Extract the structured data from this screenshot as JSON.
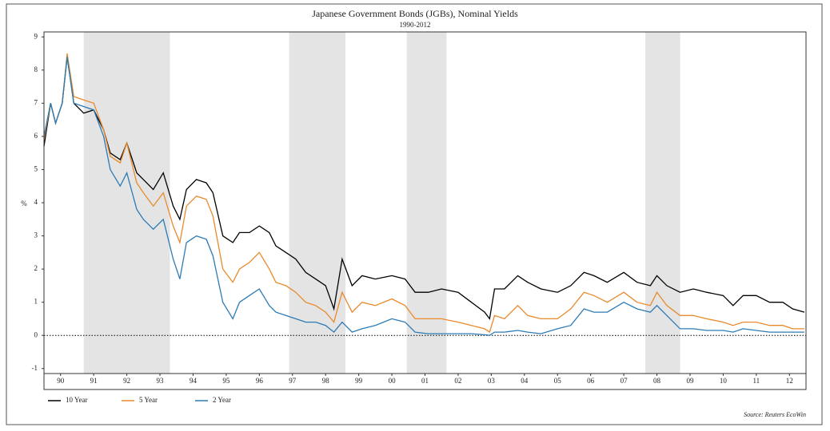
{
  "chart_data": {
    "type": "line",
    "title": "Japanese Government Bonds (JGBs), Nominal Yields",
    "subtitle": "1990-2012",
    "y_label": "%",
    "source": "Source: Reuters EcoWin",
    "x": [
      1990.0,
      1990.2,
      1990.35,
      1990.55,
      1990.7,
      1990.9,
      1991.2,
      1991.5,
      1991.8,
      1992.0,
      1992.3,
      1992.5,
      1992.8,
      1993.0,
      1993.3,
      1993.6,
      1993.9,
      1994.1,
      1994.3,
      1994.6,
      1994.9,
      1995.1,
      1995.4,
      1995.7,
      1995.9,
      1996.2,
      1996.5,
      1996.8,
      1997.0,
      1997.3,
      1997.6,
      1997.9,
      1998.2,
      1998.5,
      1998.75,
      1999.0,
      1999.3,
      1999.6,
      2000.0,
      2000.5,
      2000.9,
      2001.2,
      2001.6,
      2002.0,
      2002.5,
      2002.9,
      2003.3,
      2003.45,
      2003.6,
      2003.9,
      2004.3,
      2004.6,
      2005.0,
      2005.5,
      2005.9,
      2006.3,
      2006.6,
      2007.0,
      2007.5,
      2007.9,
      2008.3,
      2008.5,
      2008.8,
      2009.2,
      2009.6,
      2010.0,
      2010.5,
      2010.8,
      2011.1,
      2011.5,
      2011.9,
      2012.3,
      2012.6,
      2012.95
    ],
    "series": [
      {
        "name": "10 Year",
        "color": "#000000",
        "values": [
          5.7,
          7.0,
          6.4,
          7.0,
          8.4,
          7.0,
          6.7,
          6.8,
          6.2,
          5.5,
          5.3,
          5.8,
          4.9,
          4.7,
          4.4,
          4.9,
          3.9,
          3.5,
          4.4,
          4.7,
          4.6,
          4.3,
          3.0,
          2.8,
          3.1,
          3.1,
          3.3,
          3.1,
          2.7,
          2.5,
          2.3,
          1.9,
          1.7,
          1.5,
          0.8,
          2.3,
          1.5,
          1.8,
          1.7,
          1.8,
          1.7,
          1.3,
          1.3,
          1.4,
          1.3,
          1.0,
          0.7,
          0.5,
          1.4,
          1.4,
          1.8,
          1.6,
          1.4,
          1.3,
          1.5,
          1.9,
          1.8,
          1.6,
          1.9,
          1.6,
          1.5,
          1.8,
          1.5,
          1.3,
          1.4,
          1.3,
          1.2,
          0.9,
          1.2,
          1.2,
          1.0,
          1.0,
          0.8,
          0.7
        ]
      },
      {
        "name": "5 Year",
        "color": "#e98a2c",
        "values": [
          5.9,
          7.0,
          6.4,
          7.0,
          8.5,
          7.2,
          7.1,
          7.0,
          6.2,
          5.4,
          5.2,
          5.8,
          4.6,
          4.3,
          3.9,
          4.3,
          3.3,
          2.8,
          3.9,
          4.2,
          4.1,
          3.6,
          2.0,
          1.6,
          2.0,
          2.2,
          2.5,
          2.0,
          1.6,
          1.5,
          1.3,
          1.0,
          0.9,
          0.7,
          0.4,
          1.3,
          0.7,
          1.0,
          0.9,
          1.1,
          0.9,
          0.5,
          0.5,
          0.5,
          0.4,
          0.3,
          0.2,
          0.1,
          0.6,
          0.5,
          0.9,
          0.6,
          0.5,
          0.5,
          0.8,
          1.3,
          1.2,
          1.0,
          1.3,
          1.0,
          0.9,
          1.3,
          0.9,
          0.6,
          0.6,
          0.5,
          0.4,
          0.3,
          0.4,
          0.4,
          0.3,
          0.3,
          0.2,
          0.2
        ]
      },
      {
        "name": "2 Year",
        "color": "#2c7bb6",
        "values": [
          6.0,
          7.0,
          6.4,
          7.0,
          8.4,
          7.0,
          6.9,
          6.8,
          6.0,
          5.0,
          4.5,
          4.9,
          3.8,
          3.5,
          3.2,
          3.5,
          2.3,
          1.7,
          2.8,
          3.0,
          2.9,
          2.4,
          1.0,
          0.5,
          1.0,
          1.2,
          1.4,
          0.9,
          0.7,
          0.6,
          0.5,
          0.4,
          0.4,
          0.3,
          0.1,
          0.4,
          0.1,
          0.2,
          0.3,
          0.5,
          0.4,
          0.1,
          0.05,
          0.05,
          0.05,
          0.05,
          0.02,
          0.0,
          0.1,
          0.1,
          0.15,
          0.1,
          0.05,
          0.2,
          0.3,
          0.8,
          0.7,
          0.7,
          1.0,
          0.8,
          0.7,
          0.9,
          0.6,
          0.2,
          0.2,
          0.15,
          0.15,
          0.1,
          0.2,
          0.15,
          0.1,
          0.1,
          0.1,
          0.1
        ]
      }
    ],
    "shaded_periods": [
      [
        1991.2,
        1993.8
      ],
      [
        1997.4,
        1999.1
      ],
      [
        2000.95,
        2002.15
      ],
      [
        2008.15,
        2009.2
      ]
    ],
    "shade_color": "#e4e4e4",
    "xlim": [
      1990,
      2013
    ],
    "xticks": [
      {
        "value": 1990.5,
        "label": "90"
      },
      {
        "value": 1991.5,
        "label": "91"
      },
      {
        "value": 1992.5,
        "label": "92"
      },
      {
        "value": 1993.5,
        "label": "93"
      },
      {
        "value": 1994.5,
        "label": "94"
      },
      {
        "value": 1995.5,
        "label": "95"
      },
      {
        "value": 1996.5,
        "label": "96"
      },
      {
        "value": 1997.5,
        "label": "97"
      },
      {
        "value": 1998.5,
        "label": "98"
      },
      {
        "value": 1999.5,
        "label": "99"
      },
      {
        "value": 2000.5,
        "label": "00"
      },
      {
        "value": 2001.5,
        "label": "01"
      },
      {
        "value": 2002.5,
        "label": "02"
      },
      {
        "value": 2003.5,
        "label": "03"
      },
      {
        "value": 2004.5,
        "label": "04"
      },
      {
        "value": 2005.5,
        "label": "05"
      },
      {
        "value": 2006.5,
        "label": "06"
      },
      {
        "value": 2007.5,
        "label": "07"
      },
      {
        "value": 2008.5,
        "label": "08"
      },
      {
        "value": 2009.5,
        "label": "09"
      },
      {
        "value": 2010.5,
        "label": "10"
      },
      {
        "value": 2011.5,
        "label": "11"
      },
      {
        "value": 2012.5,
        "label": "12"
      }
    ],
    "ylim": [
      -1.15,
      9.15
    ],
    "yticks": [
      -1,
      0,
      1,
      2,
      3,
      4,
      5,
      6,
      7,
      8,
      9
    ],
    "zero_line": true
  }
}
